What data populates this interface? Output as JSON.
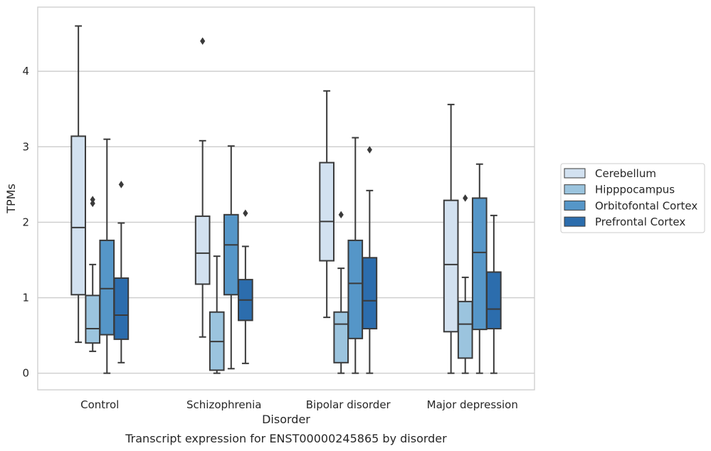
{
  "chart_data": {
    "type": "box",
    "title": "",
    "caption": "Transcript expression for ENST00000245865 by disorder",
    "xlabel": "Disorder",
    "ylabel": "TPMs",
    "ylim": [
      -0.22,
      4.85
    ],
    "yticks": [
      0,
      1,
      2,
      3,
      4
    ],
    "grid": "horizontal",
    "legend_position": "right",
    "categories": [
      "Control",
      "Schizophrenia",
      "Bipolar disorder",
      "Major depression"
    ],
    "series": [
      {
        "name": "Cerebellum",
        "color": "#d2e1f0",
        "boxes": [
          {
            "whisker_low": 0.41,
            "q1": 1.04,
            "median": 1.93,
            "q3": 3.14,
            "whisker_high": 4.6,
            "outliers": []
          },
          {
            "whisker_low": 0.48,
            "q1": 1.18,
            "median": 1.59,
            "q3": 2.08,
            "whisker_high": 3.08,
            "outliers": [
              4.4
            ]
          },
          {
            "whisker_low": 0.74,
            "q1": 1.49,
            "median": 2.01,
            "q3": 2.79,
            "whisker_high": 3.74,
            "outliers": []
          },
          {
            "whisker_low": 0.0,
            "q1": 0.55,
            "median": 1.44,
            "q3": 2.29,
            "whisker_high": 3.56,
            "outliers": []
          }
        ]
      },
      {
        "name": "Hipppocampus",
        "color": "#9bc4de",
        "boxes": [
          {
            "whisker_low": 0.29,
            "q1": 0.4,
            "median": 0.59,
            "q3": 1.03,
            "whisker_high": 1.44,
            "outliers": [
              2.25,
              2.3
            ]
          },
          {
            "whisker_low": 0.0,
            "q1": 0.04,
            "median": 0.42,
            "q3": 0.81,
            "whisker_high": 1.55,
            "outliers": []
          },
          {
            "whisker_low": 0.0,
            "q1": 0.14,
            "median": 0.65,
            "q3": 0.81,
            "whisker_high": 1.39,
            "outliers": [
              2.1
            ]
          },
          {
            "whisker_low": 0.0,
            "q1": 0.2,
            "median": 0.65,
            "q3": 0.95,
            "whisker_high": 1.27,
            "outliers": [
              2.32
            ]
          }
        ]
      },
      {
        "name": "Orbitofontal Cortex",
        "color": "#5596c8",
        "boxes": [
          {
            "whisker_low": 0.0,
            "q1": 0.51,
            "median": 1.12,
            "q3": 1.76,
            "whisker_high": 3.1,
            "outliers": []
          },
          {
            "whisker_low": 0.06,
            "q1": 1.04,
            "median": 1.7,
            "q3": 2.1,
            "whisker_high": 3.01,
            "outliers": []
          },
          {
            "whisker_low": 0.0,
            "q1": 0.46,
            "median": 1.19,
            "q3": 1.76,
            "whisker_high": 3.12,
            "outliers": []
          },
          {
            "whisker_low": 0.0,
            "q1": 0.58,
            "median": 1.6,
            "q3": 2.32,
            "whisker_high": 2.77,
            "outliers": []
          }
        ]
      },
      {
        "name": "Prefrontal Cortex",
        "color": "#2c6dad",
        "boxes": [
          {
            "whisker_low": 0.14,
            "q1": 0.45,
            "median": 0.77,
            "q3": 1.26,
            "whisker_high": 1.99,
            "outliers": [
              2.5
            ]
          },
          {
            "whisker_low": 0.13,
            "q1": 0.7,
            "median": 0.97,
            "q3": 1.24,
            "whisker_high": 1.68,
            "outliers": [
              2.12
            ]
          },
          {
            "whisker_low": 0.0,
            "q1": 0.59,
            "median": 0.96,
            "q3": 1.53,
            "whisker_high": 2.42,
            "outliers": [
              2.96
            ]
          },
          {
            "whisker_low": 0.0,
            "q1": 0.59,
            "median": 0.85,
            "q3": 1.34,
            "whisker_high": 2.09,
            "outliers": []
          }
        ]
      }
    ]
  }
}
